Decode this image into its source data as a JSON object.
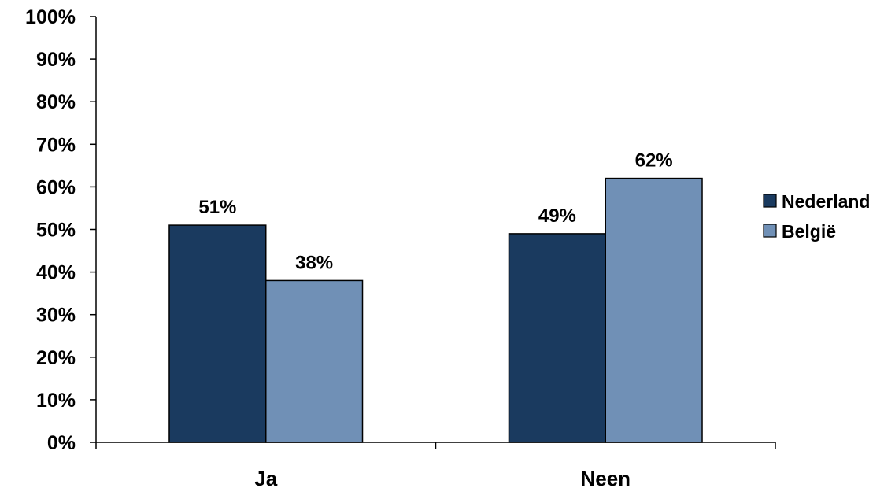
{
  "chart_data": {
    "type": "bar",
    "categories": [
      "Ja",
      "Neen"
    ],
    "series": [
      {
        "name": "Nederland",
        "values": [
          51,
          49
        ],
        "color": "#1a3a5f"
      },
      {
        "name": "België",
        "values": [
          38,
          62
        ],
        "color": "#7090b6"
      }
    ],
    "data_labels": [
      [
        "51%",
        "49%"
      ],
      [
        "38%",
        "62%"
      ]
    ],
    "ylim": [
      0,
      100
    ],
    "yticks": [
      0,
      10,
      20,
      30,
      40,
      50,
      60,
      70,
      80,
      90,
      100
    ],
    "ytick_labels": [
      "0%",
      "10%",
      "20%",
      "30%",
      "40%",
      "50%",
      "60%",
      "70%",
      "80%",
      "90%",
      "100%"
    ],
    "grid": false,
    "legend_position": "right"
  }
}
